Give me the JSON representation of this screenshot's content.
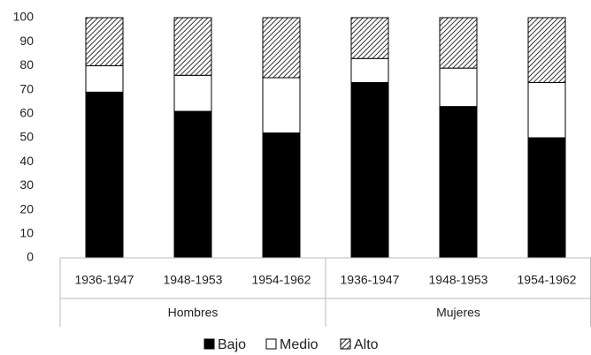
{
  "chart_data": {
    "type": "stacked_bar",
    "categories": [
      "1936-1947",
      "1948-1953",
      "1954-1962",
      "1936-1947",
      "1948-1953",
      "1954-1962"
    ],
    "groups": [
      "Hombres",
      "Mujeres"
    ],
    "series": [
      {
        "name": "Bajo",
        "color": "#000000",
        "values": [
          69,
          61,
          52,
          73,
          63,
          50
        ]
      },
      {
        "name": "Medio",
        "color": "#ffffff",
        "values": [
          11,
          15,
          23,
          10,
          16,
          23
        ]
      },
      {
        "name": "Alto",
        "color": "#000000",
        "pattern": "hatch",
        "values": [
          20,
          24,
          25,
          17,
          21,
          27
        ]
      }
    ],
    "ylim": [
      0,
      100
    ],
    "yticks": [
      0,
      10,
      20,
      30,
      40,
      50,
      60,
      70,
      80,
      90,
      100
    ],
    "grid": false,
    "legend": "bottom"
  }
}
